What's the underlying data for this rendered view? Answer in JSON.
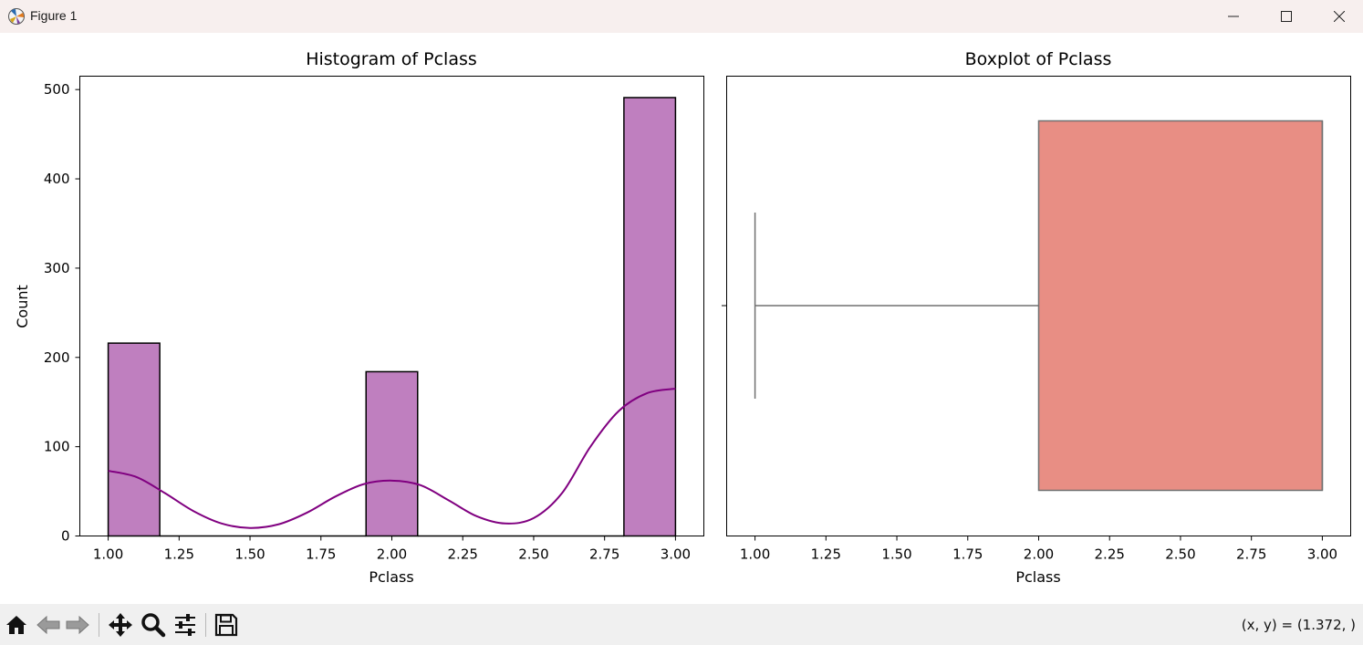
{
  "window": {
    "title": "Figure 1"
  },
  "status": {
    "coords": "(x, y) = (1.372, )"
  },
  "toolbar": {
    "buttons": [
      "home-icon",
      "back-icon",
      "forward-icon",
      "pan-icon",
      "zoom-icon",
      "configure-icon",
      "save-icon"
    ]
  },
  "colors": {
    "hist_fill": "#bf7fbf",
    "kde_line": "#800080",
    "box_fill": "#e88e84",
    "box_edge": "#707070"
  },
  "chart_data": [
    {
      "type": "bar",
      "title": "Histogram of Pclass",
      "xlabel": "Pclass",
      "ylabel": "Count",
      "xlim": [
        0.9,
        3.1
      ],
      "ylim": [
        0,
        515
      ],
      "xticks": [
        "1.00",
        "1.25",
        "1.50",
        "1.75",
        "2.00",
        "2.25",
        "2.50",
        "2.75",
        "3.00"
      ],
      "yticks": [
        "0",
        "100",
        "200",
        "300",
        "400",
        "500"
      ],
      "bins": [
        {
          "x0": 1.0,
          "x1": 1.1818,
          "value": 216
        },
        {
          "x0": 1.9091,
          "x1": 2.0909,
          "value": 184
        },
        {
          "x0": 2.8182,
          "x1": 3.0,
          "value": 491
        }
      ],
      "kde": {
        "x": [
          1.0,
          1.1,
          1.2,
          1.3,
          1.4,
          1.5,
          1.6,
          1.7,
          1.8,
          1.9,
          2.0,
          2.1,
          2.2,
          2.3,
          2.4,
          2.5,
          2.6,
          2.7,
          2.8,
          2.9,
          3.0
        ],
        "y": [
          73,
          66,
          48,
          28,
          14,
          9,
          13,
          26,
          44,
          58,
          62,
          57,
          40,
          22,
          14,
          20,
          48,
          100,
          140,
          160,
          165
        ]
      }
    },
    {
      "type": "box",
      "title": "Boxplot of Pclass",
      "xlabel": "Pclass",
      "xlim": [
        0.9,
        3.1
      ],
      "xticks": [
        "1.00",
        "1.25",
        "1.50",
        "1.75",
        "2.00",
        "2.25",
        "2.50",
        "2.75",
        "3.00"
      ],
      "stats": {
        "whisker_low": 1.0,
        "q1": 2.0,
        "median": 3.0,
        "q3": 3.0,
        "whisker_high": 3.0
      }
    }
  ]
}
